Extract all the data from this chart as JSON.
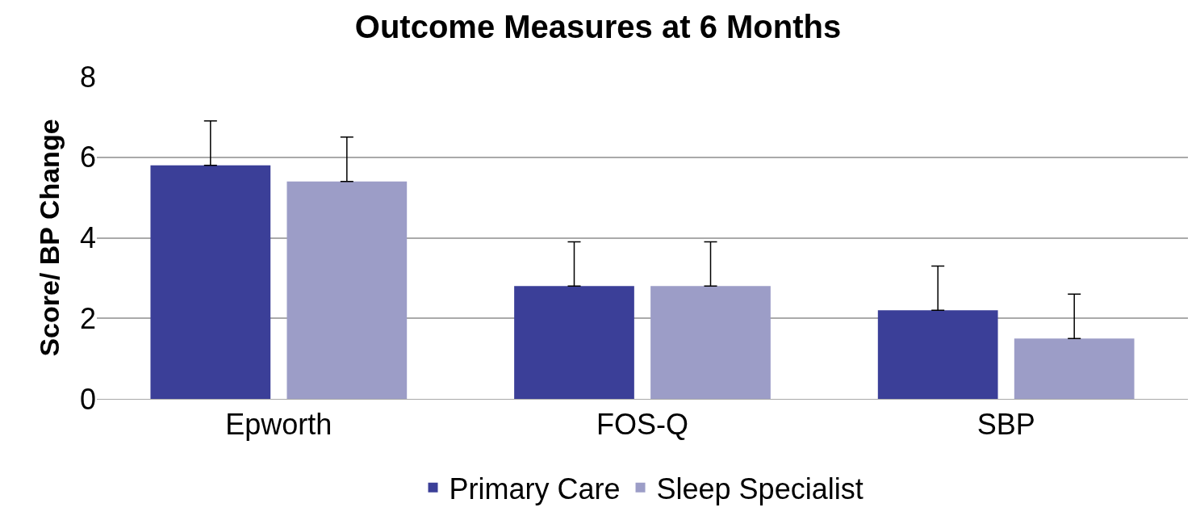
{
  "chart_data": {
    "type": "bar",
    "title": "Outcome Measures at 6 Months",
    "ylabel": "Score/ BP Change",
    "categories": [
      "Epworth",
      "FOS-Q",
      "SBP"
    ],
    "series": [
      {
        "name": "Primary Care",
        "color": "#3b3f98",
        "values": [
          5.8,
          2.8,
          2.2
        ],
        "errors": [
          [
            5.8,
            6.9
          ],
          [
            2.8,
            3.9
          ],
          [
            2.2,
            3.3
          ]
        ]
      },
      {
        "name": "Sleep Specialist",
        "color": "#9c9dc7",
        "values": [
          5.4,
          2.8,
          1.5
        ],
        "errors": [
          [
            5.4,
            6.5
          ],
          [
            2.8,
            3.9
          ],
          [
            1.5,
            2.6
          ]
        ]
      }
    ],
    "ylim": [
      0,
      8
    ],
    "yticks": [
      0,
      2,
      4,
      6,
      8
    ],
    "grid": "y",
    "legend": "bottom"
  }
}
